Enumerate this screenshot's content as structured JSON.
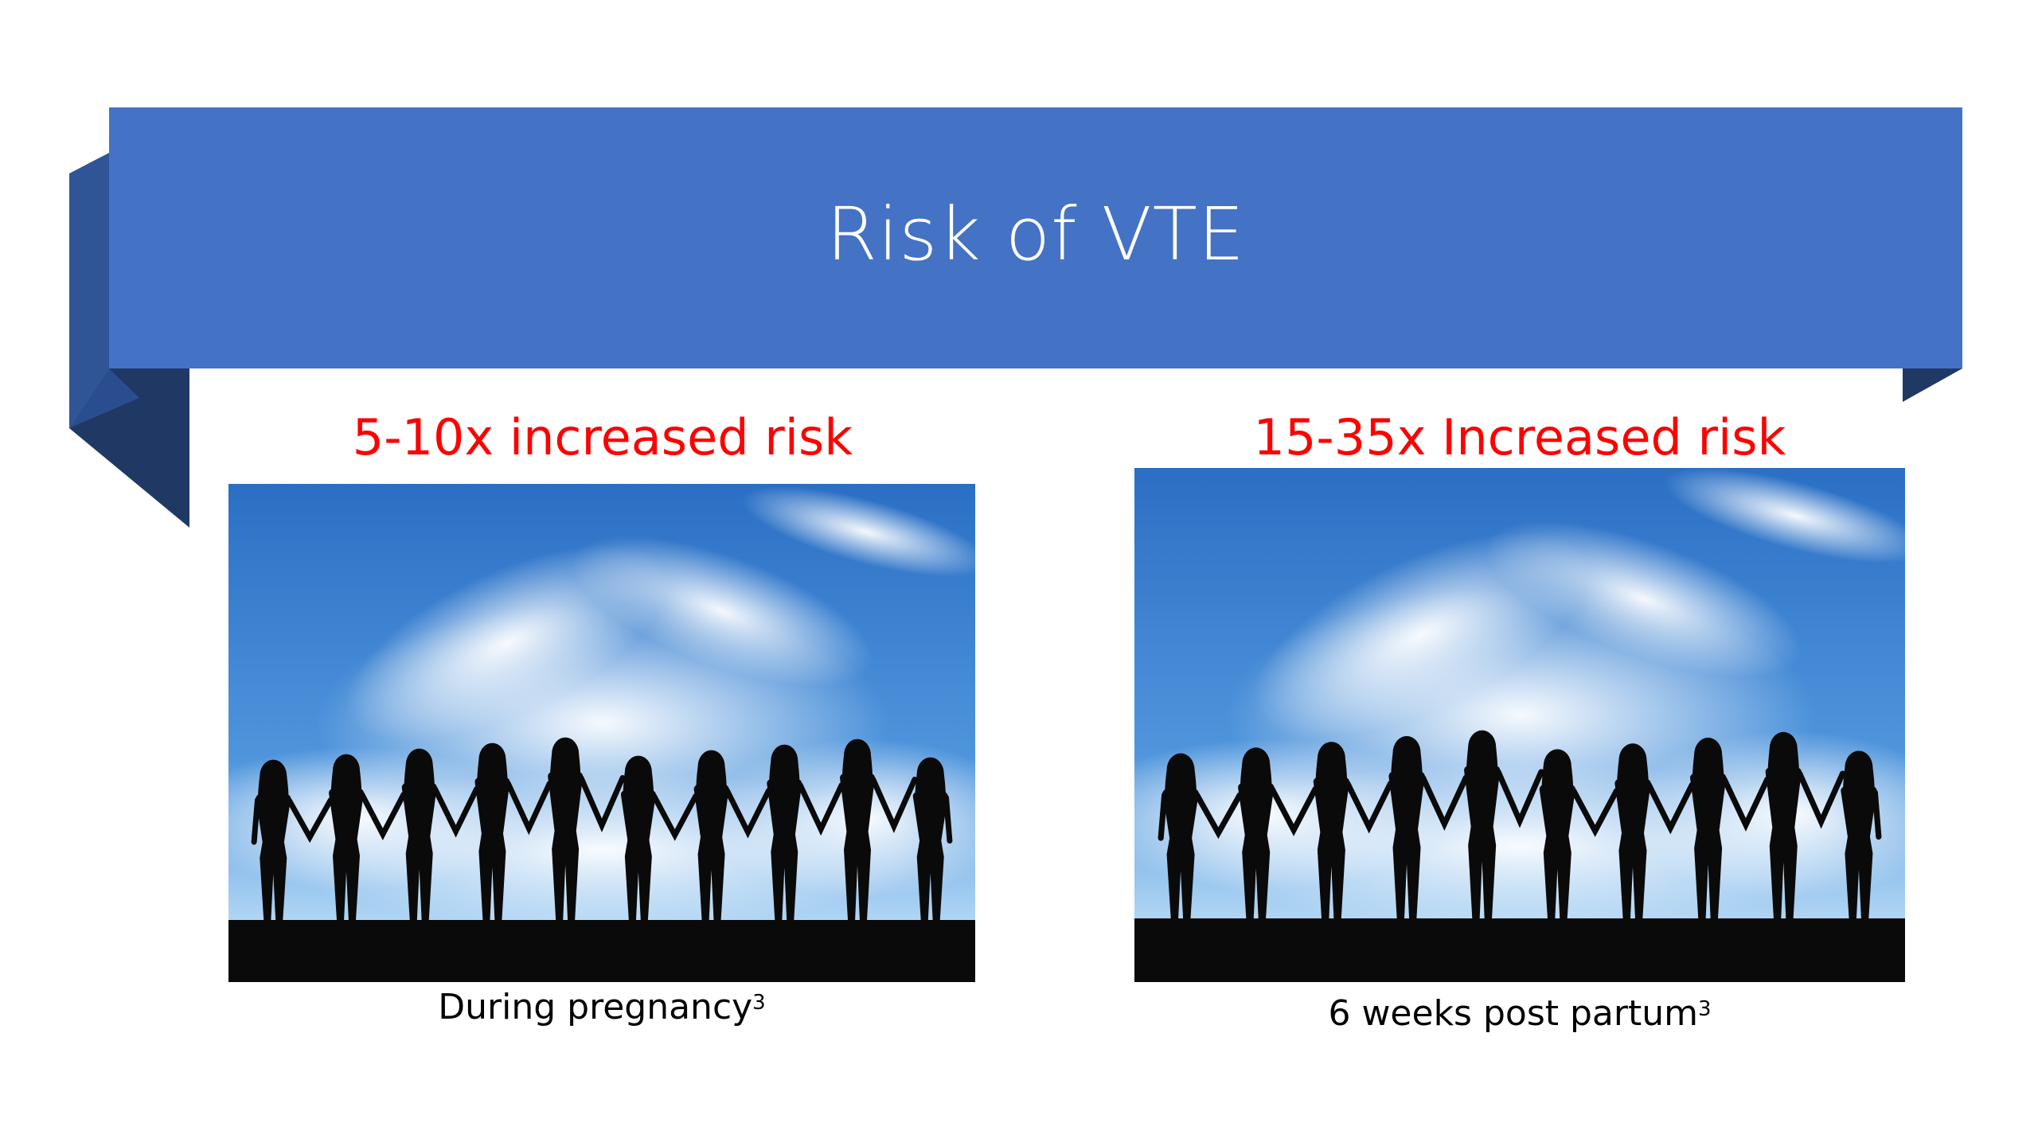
{
  "slide": {
    "title": "Risk of VTE",
    "colors": {
      "banner": "#4472c4",
      "banner_shadow": "#2f5597",
      "banner_dark": "#203864",
      "risk_text": "#ff0000",
      "caption_text": "#000000",
      "background": "#ffffff"
    },
    "left_panel": {
      "risk_label": "5-10x increased risk",
      "caption": "During pregnancy",
      "caption_superscript": "3",
      "image": "photo of women silhouettes holding hands against blue sky with clouds"
    },
    "right_panel": {
      "risk_label": "15-35x Increased risk",
      "caption": "6 weeks post partum",
      "caption_superscript": "3",
      "image": "photo of women silhouettes holding hands against blue sky with clouds"
    }
  }
}
